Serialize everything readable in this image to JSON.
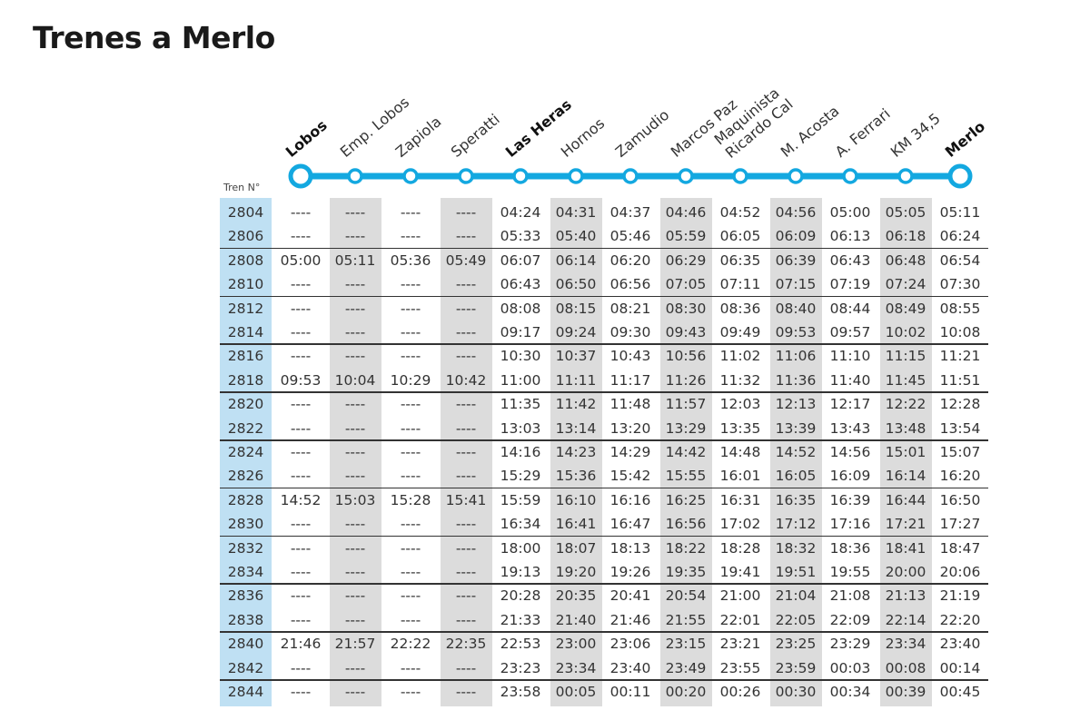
{
  "title": "Trenes a Merlo",
  "tren_label": "Tren N°",
  "stations": [
    {
      "name": "Lobos",
      "bold": true
    },
    {
      "name": "Emp. Lobos",
      "bold": false
    },
    {
      "name": "Zapiola",
      "bold": false
    },
    {
      "name": "Speratti",
      "bold": false
    },
    {
      "name": "Las Heras",
      "bold": true
    },
    {
      "name": "Hornos",
      "bold": false
    },
    {
      "name": "Zamudio",
      "bold": false
    },
    {
      "name": "Marcos Paz",
      "bold": false
    },
    {
      "name": "Maquinista Ricardo Cal",
      "line1": "Maquinista",
      "line2": "Ricardo Cal",
      "bold": false
    },
    {
      "name": "M. Acosta",
      "bold": false
    },
    {
      "name": "A. Ferrari",
      "bold": false
    },
    {
      "name": "KM 34,5",
      "bold": false
    },
    {
      "name": "Merlo",
      "bold": true
    }
  ],
  "colors": {
    "line": "#13a8e0",
    "num_column": "#bfe0f3",
    "shaded_column": "#dcdcdc"
  },
  "trains": [
    {
      "num": "2804",
      "times": [
        "----",
        "----",
        "----",
        "----",
        "04:24",
        "04:31",
        "04:37",
        "04:46",
        "04:52",
        "04:56",
        "05:00",
        "05:05",
        "05:11"
      ]
    },
    {
      "num": "2806",
      "times": [
        "----",
        "----",
        "----",
        "----",
        "05:33",
        "05:40",
        "05:46",
        "05:59",
        "06:05",
        "06:09",
        "06:13",
        "06:18",
        "06:24"
      ]
    },
    {
      "num": "2808",
      "times": [
        "05:00",
        "05:11",
        "05:36",
        "05:49",
        "06:07",
        "06:14",
        "06:20",
        "06:29",
        "06:35",
        "06:39",
        "06:43",
        "06:48",
        "06:54"
      ]
    },
    {
      "num": "2810",
      "times": [
        "----",
        "----",
        "----",
        "----",
        "06:43",
        "06:50",
        "06:56",
        "07:05",
        "07:11",
        "07:15",
        "07:19",
        "07:24",
        "07:30"
      ]
    },
    {
      "num": "2812",
      "times": [
        "----",
        "----",
        "----",
        "----",
        "08:08",
        "08:15",
        "08:21",
        "08:30",
        "08:36",
        "08:40",
        "08:44",
        "08:49",
        "08:55"
      ]
    },
    {
      "num": "2814",
      "times": [
        "----",
        "----",
        "----",
        "----",
        "09:17",
        "09:24",
        "09:30",
        "09:43",
        "09:49",
        "09:53",
        "09:57",
        "10:02",
        "10:08"
      ]
    },
    {
      "num": "2816",
      "times": [
        "----",
        "----",
        "----",
        "----",
        "10:30",
        "10:37",
        "10:43",
        "10:56",
        "11:02",
        "11:06",
        "11:10",
        "11:15",
        "11:21"
      ]
    },
    {
      "num": "2818",
      "times": [
        "09:53",
        "10:04",
        "10:29",
        "10:42",
        "11:00",
        "11:11",
        "11:17",
        "11:26",
        "11:32",
        "11:36",
        "11:40",
        "11:45",
        "11:51"
      ]
    },
    {
      "num": "2820",
      "times": [
        "----",
        "----",
        "----",
        "----",
        "11:35",
        "11:42",
        "11:48",
        "11:57",
        "12:03",
        "12:13",
        "12:17",
        "12:22",
        "12:28"
      ]
    },
    {
      "num": "2822",
      "times": [
        "----",
        "----",
        "----",
        "----",
        "13:03",
        "13:14",
        "13:20",
        "13:29",
        "13:35",
        "13:39",
        "13:43",
        "13:48",
        "13:54"
      ]
    },
    {
      "num": "2824",
      "times": [
        "----",
        "----",
        "----",
        "----",
        "14:16",
        "14:23",
        "14:29",
        "14:42",
        "14:48",
        "14:52",
        "14:56",
        "15:01",
        "15:07"
      ]
    },
    {
      "num": "2826",
      "times": [
        "----",
        "----",
        "----",
        "----",
        "15:29",
        "15:36",
        "15:42",
        "15:55",
        "16:01",
        "16:05",
        "16:09",
        "16:14",
        "16:20"
      ]
    },
    {
      "num": "2828",
      "times": [
        "14:52",
        "15:03",
        "15:28",
        "15:41",
        "15:59",
        "16:10",
        "16:16",
        "16:25",
        "16:31",
        "16:35",
        "16:39",
        "16:44",
        "16:50"
      ]
    },
    {
      "num": "2830",
      "times": [
        "----",
        "----",
        "----",
        "----",
        "16:34",
        "16:41",
        "16:47",
        "16:56",
        "17:02",
        "17:12",
        "17:16",
        "17:21",
        "17:27"
      ]
    },
    {
      "num": "2832",
      "times": [
        "----",
        "----",
        "----",
        "----",
        "18:00",
        "18:07",
        "18:13",
        "18:22",
        "18:28",
        "18:32",
        "18:36",
        "18:41",
        "18:47"
      ]
    },
    {
      "num": "2834",
      "times": [
        "----",
        "----",
        "----",
        "----",
        "19:13",
        "19:20",
        "19:26",
        "19:35",
        "19:41",
        "19:51",
        "19:55",
        "20:00",
        "20:06"
      ]
    },
    {
      "num": "2836",
      "times": [
        "----",
        "----",
        "----",
        "----",
        "20:28",
        "20:35",
        "20:41",
        "20:54",
        "21:00",
        "21:04",
        "21:08",
        "21:13",
        "21:19"
      ]
    },
    {
      "num": "2838",
      "times": [
        "----",
        "----",
        "----",
        "----",
        "21:33",
        "21:40",
        "21:46",
        "21:55",
        "22:01",
        "22:05",
        "22:09",
        "22:14",
        "22:20"
      ]
    },
    {
      "num": "2840",
      "times": [
        "21:46",
        "21:57",
        "22:22",
        "22:35",
        "22:53",
        "23:00",
        "23:06",
        "23:15",
        "23:21",
        "23:25",
        "23:29",
        "23:34",
        "23:40"
      ]
    },
    {
      "num": "2842",
      "times": [
        "----",
        "----",
        "----",
        "----",
        "23:23",
        "23:34",
        "23:40",
        "23:49",
        "23:55",
        "23:59",
        "00:03",
        "00:08",
        "00:14"
      ]
    },
    {
      "num": "2844",
      "times": [
        "----",
        "----",
        "----",
        "----",
        "23:58",
        "00:05",
        "00:11",
        "00:20",
        "00:26",
        "00:30",
        "00:34",
        "00:39",
        "00:45"
      ]
    }
  ]
}
